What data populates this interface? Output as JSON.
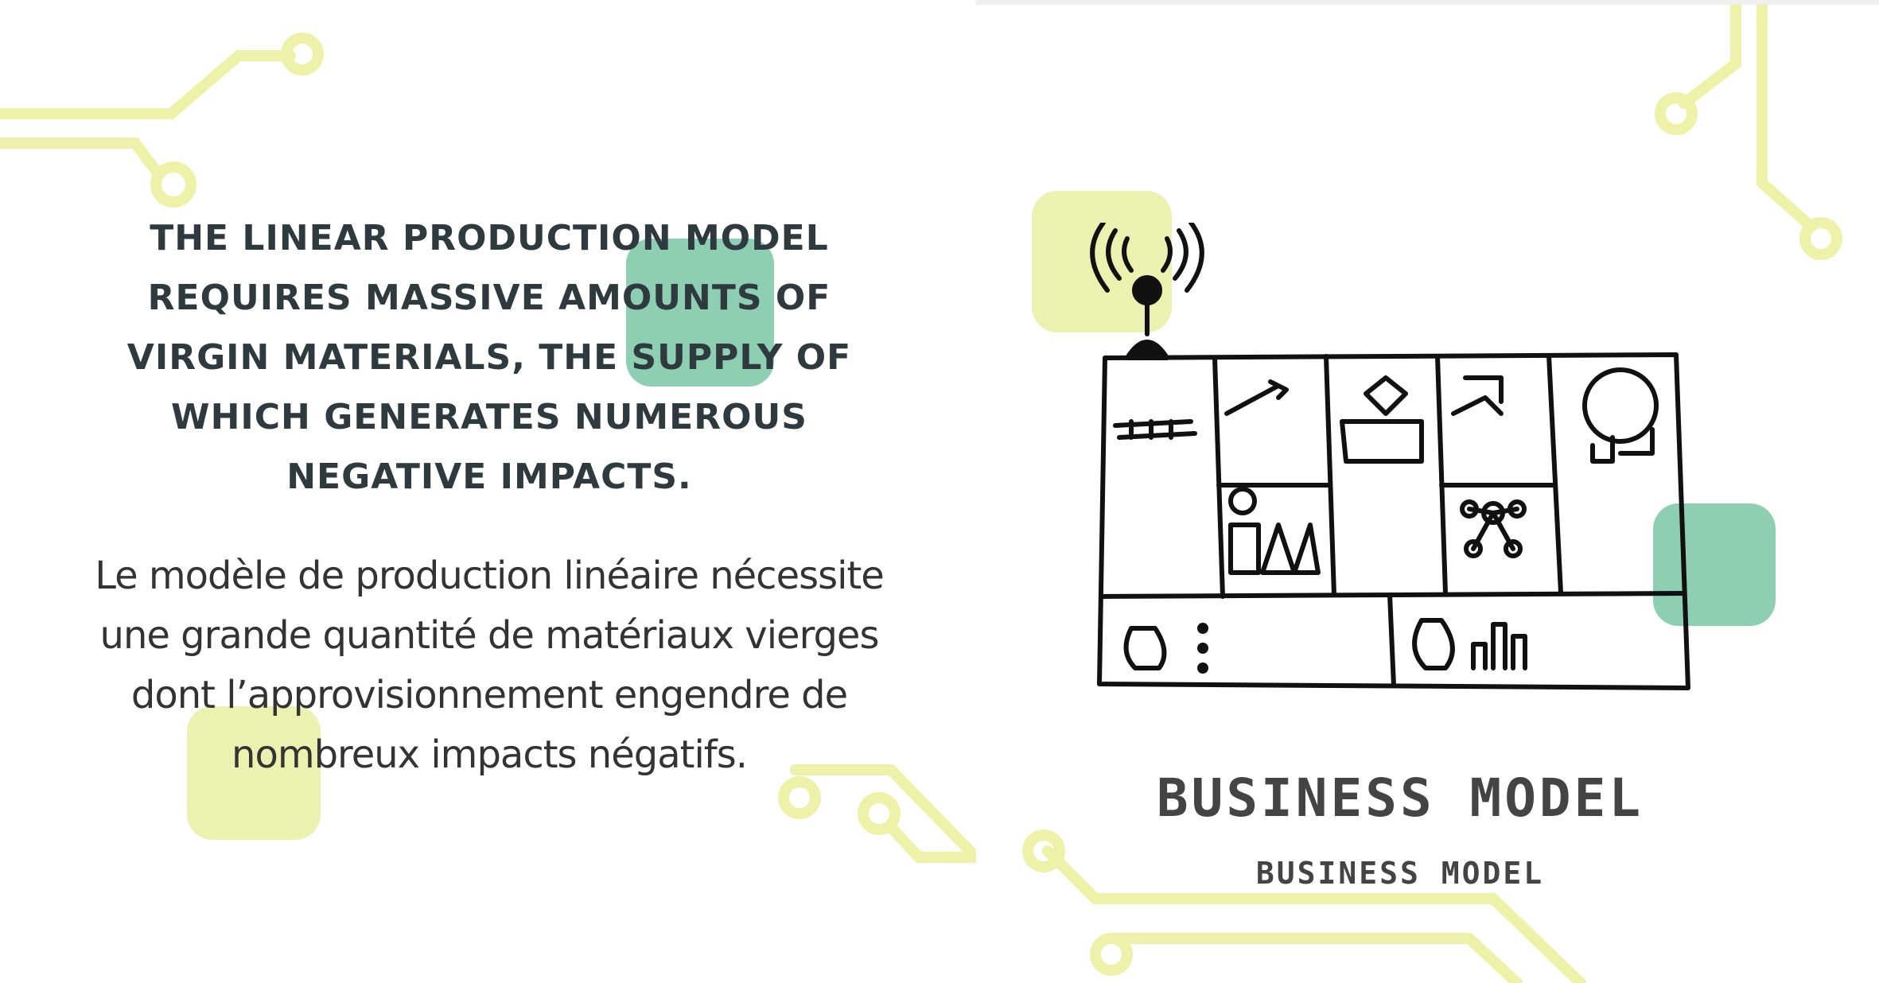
{
  "left_page": {
    "heading_en": "THE LINEAR PRODUCTION MODEL REQUIRES MASSIVE AMOUNTS OF VIRGIN MATERIALS, THE SUPPLY OF WHICH GENERATES NUMEROUS NEGATIVE IMPACTS.",
    "body_fr": "Le modèle de production linéaire nécessite une grande quantité de matériaux vierges dont l’approvisionnement engendre de nombreux impacts négatifs."
  },
  "right_page": {
    "title_main": "BUSINESS MODEL",
    "title_sub": "BUSINESS MODEL"
  },
  "colors": {
    "accent_green": "#7ec8a8",
    "accent_yellow": "#e9f0a8",
    "text_dark": "#2f3a3f"
  },
  "icons": [
    "circuit-trace-icon",
    "antenna-icon",
    "business-model-canvas-sketch"
  ]
}
